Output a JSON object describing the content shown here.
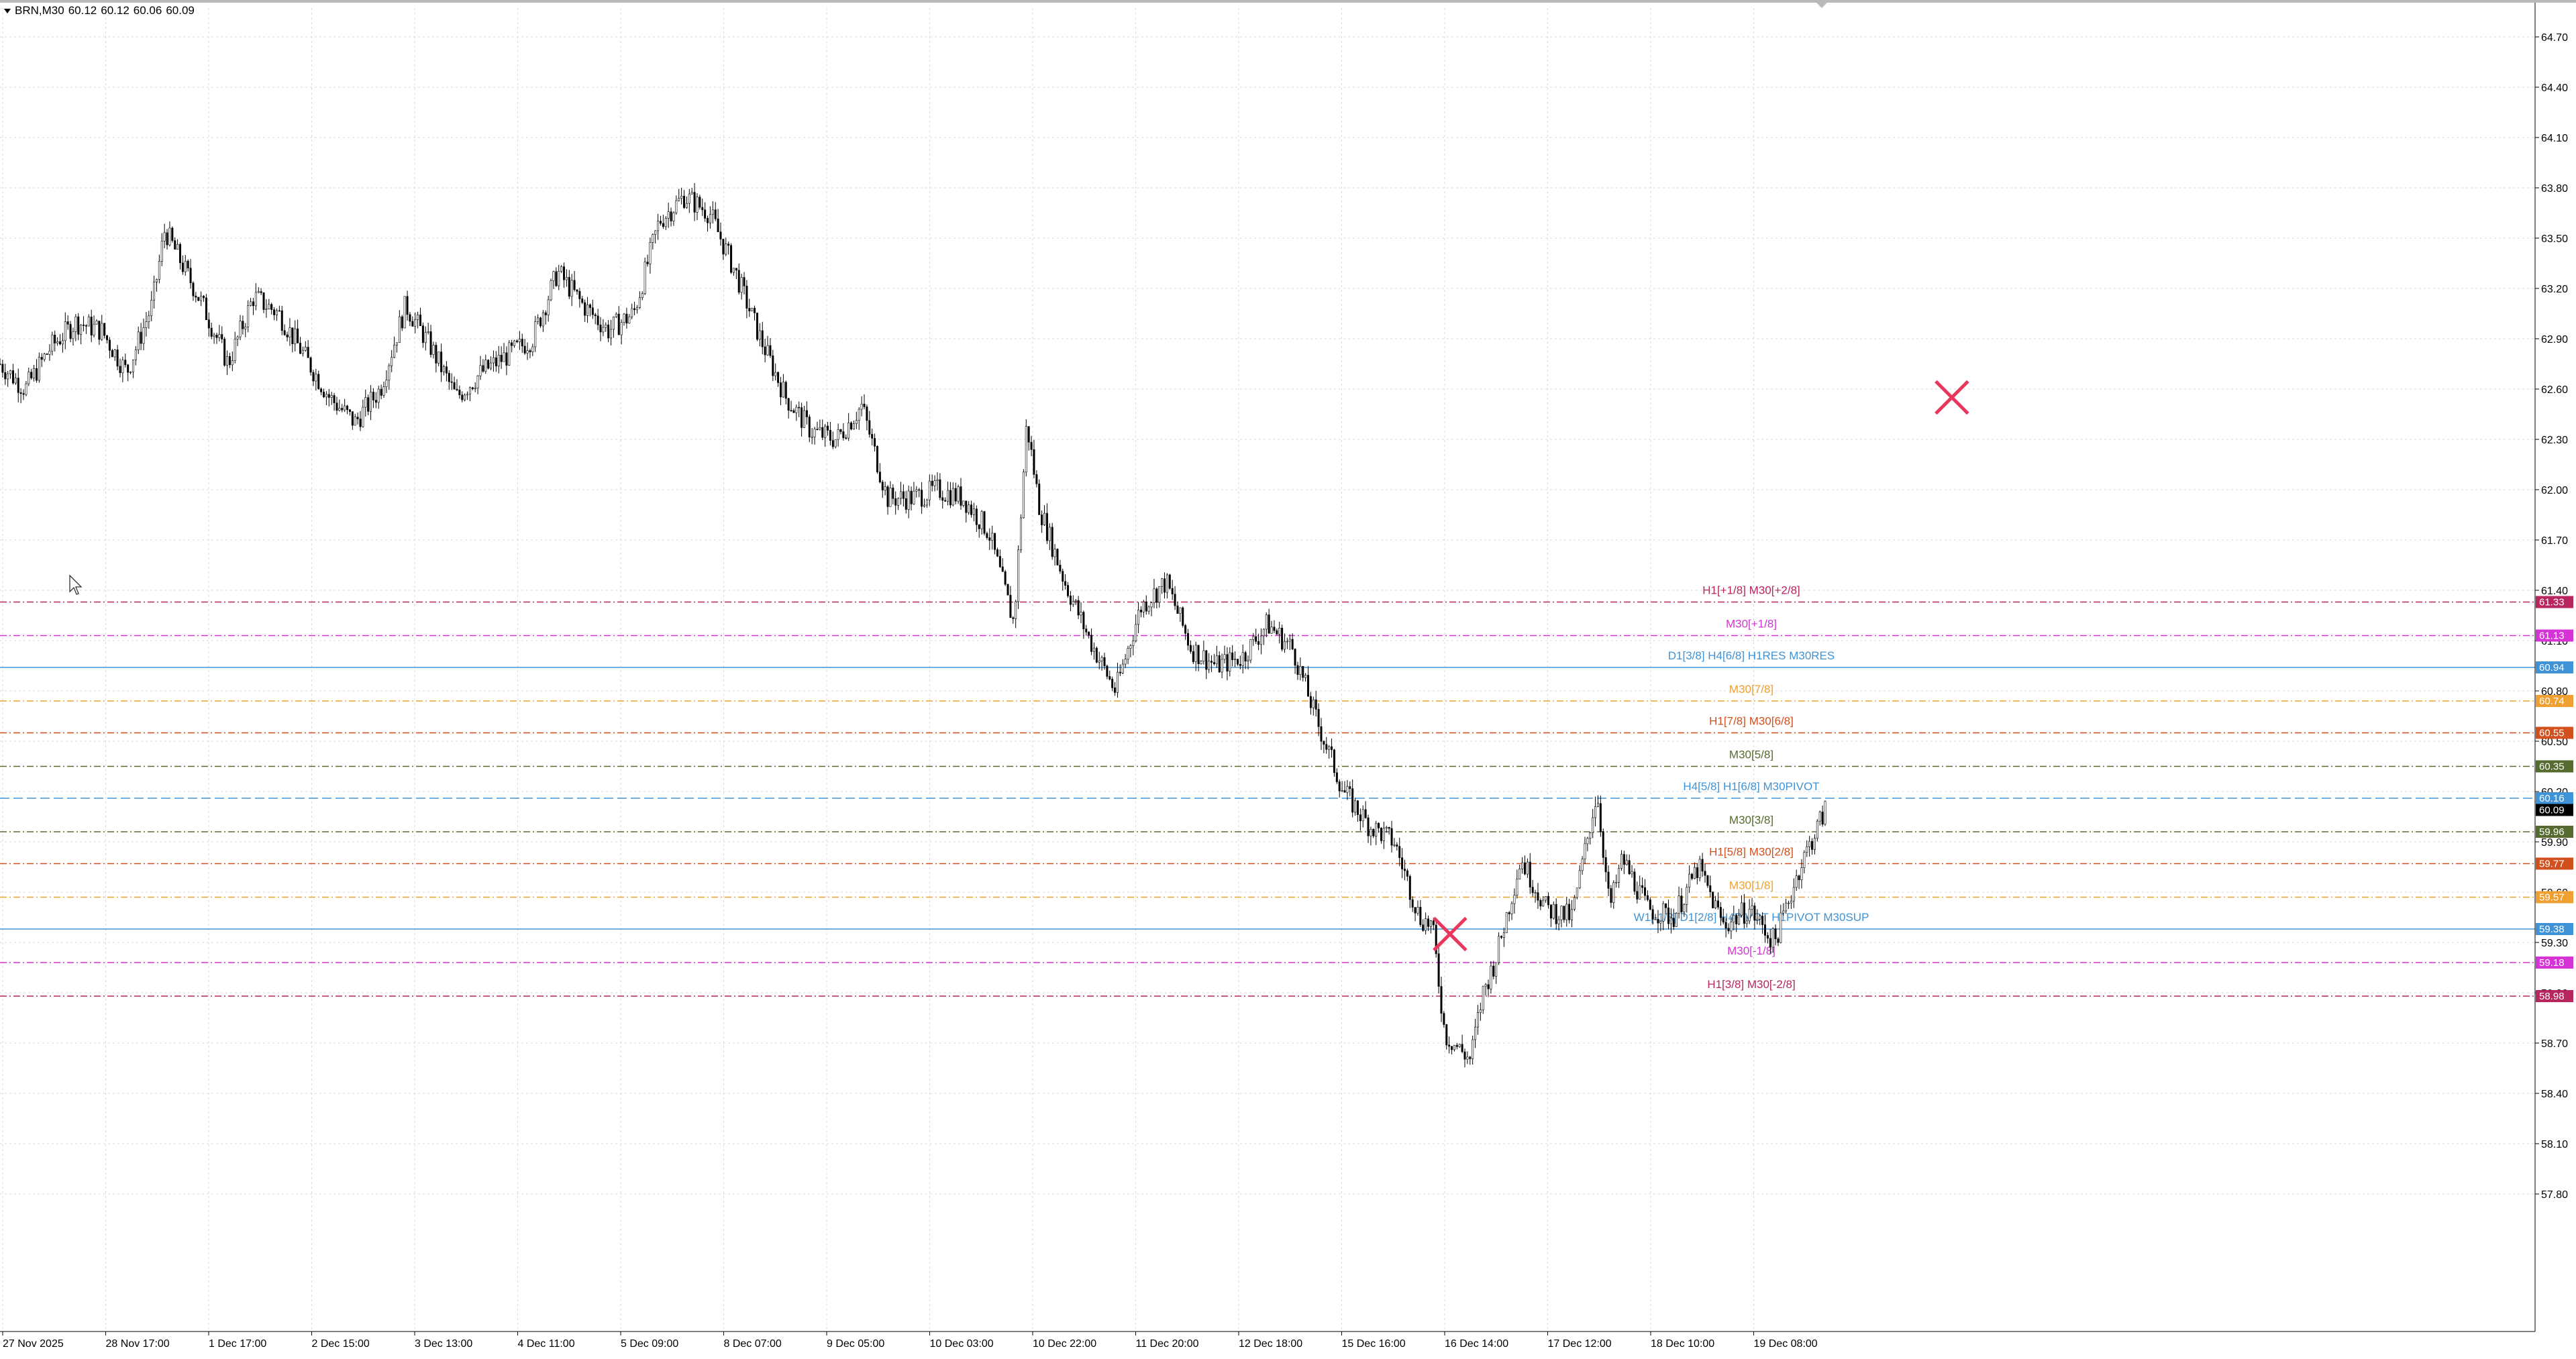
{
  "header": {
    "symbol": "BRN,M30",
    "open": "60.12",
    "high": "60.12",
    "low": "60.06",
    "close": "60.09"
  },
  "colors": {
    "background": "#ffffff",
    "grid": "#d9d9d9",
    "candle": "#000000",
    "axis_text": "#000000",
    "close_marker": "#e8365d"
  },
  "icons": [
    "cross-marker-icon",
    "cross-marker-icon",
    "mouse-cursor-icon",
    "symbol-menu-icon"
  ],
  "chart_data": {
    "type": "candlestick",
    "symbol": "BRN",
    "timeframe": "M30",
    "ylim": [
      57.6,
      64.9
    ],
    "grid": true,
    "y_ticks": [
      "64.70",
      "64.40",
      "64.10",
      "63.80",
      "63.50",
      "63.20",
      "62.90",
      "62.60",
      "62.30",
      "62.00",
      "61.70",
      "61.40",
      "61.10",
      "60.80",
      "60.50",
      "60.20",
      "59.90",
      "59.60",
      "59.30",
      "59.00",
      "58.70",
      "58.40",
      "58.10",
      "57.80"
    ],
    "x_labels": [
      "27 Nov 2025",
      "28 Nov 17:00",
      "1 Dec 17:00",
      "2 Dec 15:00",
      "3 Dec 13:00",
      "4 Dec 11:00",
      "5 Dec 09:00",
      "8 Dec 07:00",
      "9 Dec 05:00",
      "10 Dec 03:00",
      "10 Dec 22:00",
      "11 Dec 20:00",
      "12 Dec 18:00",
      "15 Dec 16:00",
      "16 Dec 14:00",
      "17 Dec 12:00",
      "18 Dec 10:00",
      "19 Dec 08:00"
    ],
    "price_path": [
      [
        0,
        62.75
      ],
      [
        0.01,
        62.6
      ],
      [
        0.02,
        62.85
      ],
      [
        0.03,
        63.0
      ],
      [
        0.04,
        62.95
      ],
      [
        0.05,
        62.7
      ],
      [
        0.06,
        63.1
      ],
      [
        0.065,
        63.55
      ],
      [
        0.07,
        63.4
      ],
      [
        0.08,
        63.1
      ],
      [
        0.09,
        62.75
      ],
      [
        0.1,
        63.15
      ],
      [
        0.11,
        63.05
      ],
      [
        0.12,
        62.8
      ],
      [
        0.13,
        62.55
      ],
      [
        0.14,
        62.4
      ],
      [
        0.15,
        62.6
      ],
      [
        0.16,
        63.1
      ],
      [
        0.17,
        62.85
      ],
      [
        0.18,
        62.55
      ],
      [
        0.19,
        62.7
      ],
      [
        0.2,
        62.8
      ],
      [
        0.21,
        62.9
      ],
      [
        0.22,
        63.3
      ],
      [
        0.23,
        63.1
      ],
      [
        0.24,
        62.95
      ],
      [
        0.25,
        63.05
      ],
      [
        0.26,
        63.6
      ],
      [
        0.27,
        63.75
      ],
      [
        0.28,
        63.65
      ],
      [
        0.29,
        63.3
      ],
      [
        0.3,
        62.9
      ],
      [
        0.31,
        62.55
      ],
      [
        0.32,
        62.35
      ],
      [
        0.33,
        62.3
      ],
      [
        0.34,
        62.5
      ],
      [
        0.35,
        61.95
      ],
      [
        0.36,
        61.95
      ],
      [
        0.37,
        62.0
      ],
      [
        0.38,
        61.95
      ],
      [
        0.39,
        61.75
      ],
      [
        0.4,
        61.2
      ],
      [
        0.405,
        62.4
      ],
      [
        0.41,
        61.9
      ],
      [
        0.42,
        61.45
      ],
      [
        0.43,
        61.1
      ],
      [
        0.44,
        60.8
      ],
      [
        0.45,
        61.3
      ],
      [
        0.46,
        61.45
      ],
      [
        0.47,
        61.05
      ],
      [
        0.48,
        60.95
      ],
      [
        0.49,
        61.0
      ],
      [
        0.5,
        61.2
      ],
      [
        0.51,
        61.05
      ],
      [
        0.52,
        60.6
      ],
      [
        0.53,
        60.2
      ],
      [
        0.54,
        60.0
      ],
      [
        0.55,
        59.9
      ],
      [
        0.56,
        59.45
      ],
      [
        0.565,
        59.4
      ],
      [
        0.57,
        58.75
      ],
      [
        0.58,
        58.6
      ],
      [
        0.585,
        59.0
      ],
      [
        0.59,
        59.2
      ],
      [
        0.6,
        59.8
      ],
      [
        0.61,
        59.5
      ],
      [
        0.62,
        59.45
      ],
      [
        0.63,
        60.2
      ],
      [
        0.635,
        59.5
      ],
      [
        0.64,
        59.8
      ],
      [
        0.65,
        59.5
      ],
      [
        0.66,
        59.45
      ],
      [
        0.67,
        59.75
      ],
      [
        0.68,
        59.4
      ],
      [
        0.69,
        59.5
      ],
      [
        0.7,
        59.3
      ],
      [
        0.71,
        59.75
      ],
      [
        0.72,
        60.09
      ]
    ],
    "fibo_levels": [
      {
        "label": "H1[+1/8] M30[+2/8]",
        "price": "61.33",
        "value": 61.33,
        "color": "#b8255f",
        "style": "dashdot"
      },
      {
        "label": "M30[+1/8]",
        "price": "61.13",
        "value": 61.13,
        "color": "#d633d6",
        "style": "dashdot"
      },
      {
        "label": "D1[3/8] H4[6/8] H1RES M30RES",
        "price": "60.94",
        "value": 60.94,
        "color": "#3f93d6",
        "style": "solid"
      },
      {
        "label": "M30[7/8]",
        "price": "60.74",
        "value": 60.74,
        "color": "#f0a030",
        "style": "dashdot"
      },
      {
        "label": "H1[7/8] M30[6/8]",
        "price": "60.55",
        "value": 60.55,
        "color": "#d2501e",
        "style": "dashdot"
      },
      {
        "label": "M30[5/8]",
        "price": "60.35",
        "value": 60.35,
        "color": "#556b2f",
        "style": "dashdot"
      },
      {
        "label": "H4[5/8] H1[6/8] M30PIVOT",
        "price": "60.16",
        "value": 60.16,
        "color": "#3f93d6",
        "style": "dashed"
      },
      {
        "label": "M30[3/8]",
        "price": "59.96",
        "value": 59.96,
        "color": "#556b2f",
        "style": "dashdot"
      },
      {
        "label": "H1[5/8] M30[2/8]",
        "price": "59.77",
        "value": 59.77,
        "color": "#d2501e",
        "style": "dashdot"
      },
      {
        "label": "M30[1/8]",
        "price": "59.57",
        "value": 59.57,
        "color": "#f0a030",
        "style": "dashdot"
      },
      {
        "label": "W1[-1/8] D1[2/8] H4PIVOT H1PIVOT M30SUP",
        "price": "59.38",
        "value": 59.38,
        "color": "#3f93d6",
        "style": "solid"
      },
      {
        "label": "M30[-1/8]",
        "price": "59.18",
        "value": 59.18,
        "color": "#d633d6",
        "style": "dashdot"
      },
      {
        "label": "H1[3/8] M30[-2/8]",
        "price": "58.98",
        "value": 58.98,
        "color": "#b8255f",
        "style": "dashdot"
      }
    ],
    "current_price": {
      "price": "60.09",
      "value": 60.09
    },
    "markers": [
      {
        "type": "cross",
        "price_value": 62.55,
        "time_position": 0.77
      },
      {
        "type": "cross",
        "price_value": 59.35,
        "time_position": 0.572
      }
    ]
  }
}
